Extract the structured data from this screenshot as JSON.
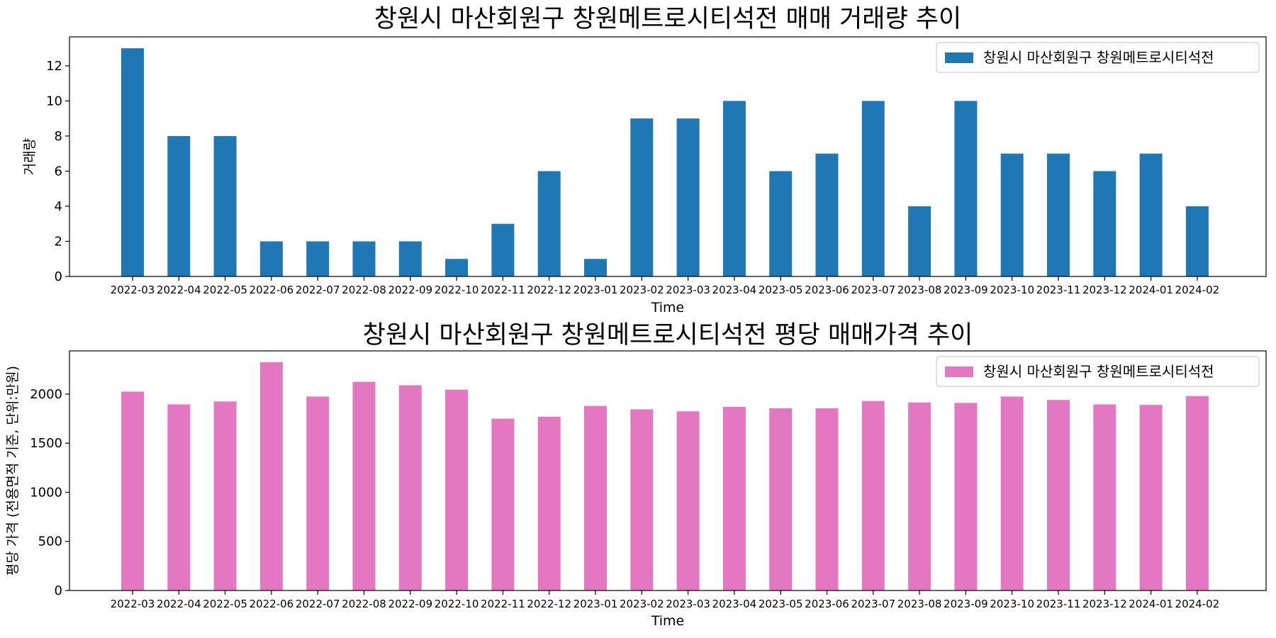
{
  "chart_data": [
    {
      "type": "bar",
      "title": "창원시 마산회원구 창원메트로시티석전 매매 거래량 추이",
      "xlabel": "Time",
      "ylabel": "거래량",
      "ylim": [
        0,
        13.65
      ],
      "yticks": [
        0,
        2,
        4,
        6,
        8,
        10,
        12
      ],
      "color": "#1f77b4",
      "legend": {
        "label": "창원시 마산회원구 창원메트로시티석전",
        "placement": "upper right"
      },
      "categories": [
        "2022-03",
        "2022-04",
        "2022-05",
        "2022-06",
        "2022-07",
        "2022-08",
        "2022-09",
        "2022-10",
        "2022-11",
        "2022-12",
        "2023-01",
        "2023-02",
        "2023-03",
        "2023-04",
        "2023-05",
        "2023-06",
        "2023-07",
        "2023-08",
        "2023-09",
        "2023-10",
        "2023-11",
        "2023-12",
        "2024-01",
        "2024-02"
      ],
      "values": [
        13,
        8,
        8,
        2,
        2,
        2,
        2,
        1,
        3,
        6,
        1,
        9,
        9,
        10,
        6,
        7,
        10,
        4,
        10,
        7,
        7,
        6,
        7,
        4
      ]
    },
    {
      "type": "bar",
      "title": "창원시 마산회원구 창원메트로시티석전 평당 매매가격 추이",
      "xlabel": "Time",
      "ylabel": "평당 가격 (전용면적 기준, 단위:만원)",
      "ylim": [
        0,
        2440
      ],
      "yticks": [
        0,
        500,
        1000,
        1500,
        2000
      ],
      "color": "#e377c2",
      "legend": {
        "label": "창원시 마산회원구 창원메트로시티석전",
        "placement": "upper right"
      },
      "categories": [
        "2022-03",
        "2022-04",
        "2022-05",
        "2022-06",
        "2022-07",
        "2022-08",
        "2022-09",
        "2022-10",
        "2022-11",
        "2022-12",
        "2023-01",
        "2023-02",
        "2023-03",
        "2023-04",
        "2023-05",
        "2023-06",
        "2023-07",
        "2023-08",
        "2023-09",
        "2023-10",
        "2023-11",
        "2023-12",
        "2024-01",
        "2024-02"
      ],
      "values": [
        2025,
        1895,
        1925,
        2325,
        1975,
        2125,
        2090,
        2045,
        1750,
        1770,
        1880,
        1845,
        1825,
        1870,
        1855,
        1855,
        1930,
        1915,
        1910,
        1975,
        1940,
        1895,
        1890,
        1980
      ]
    }
  ]
}
